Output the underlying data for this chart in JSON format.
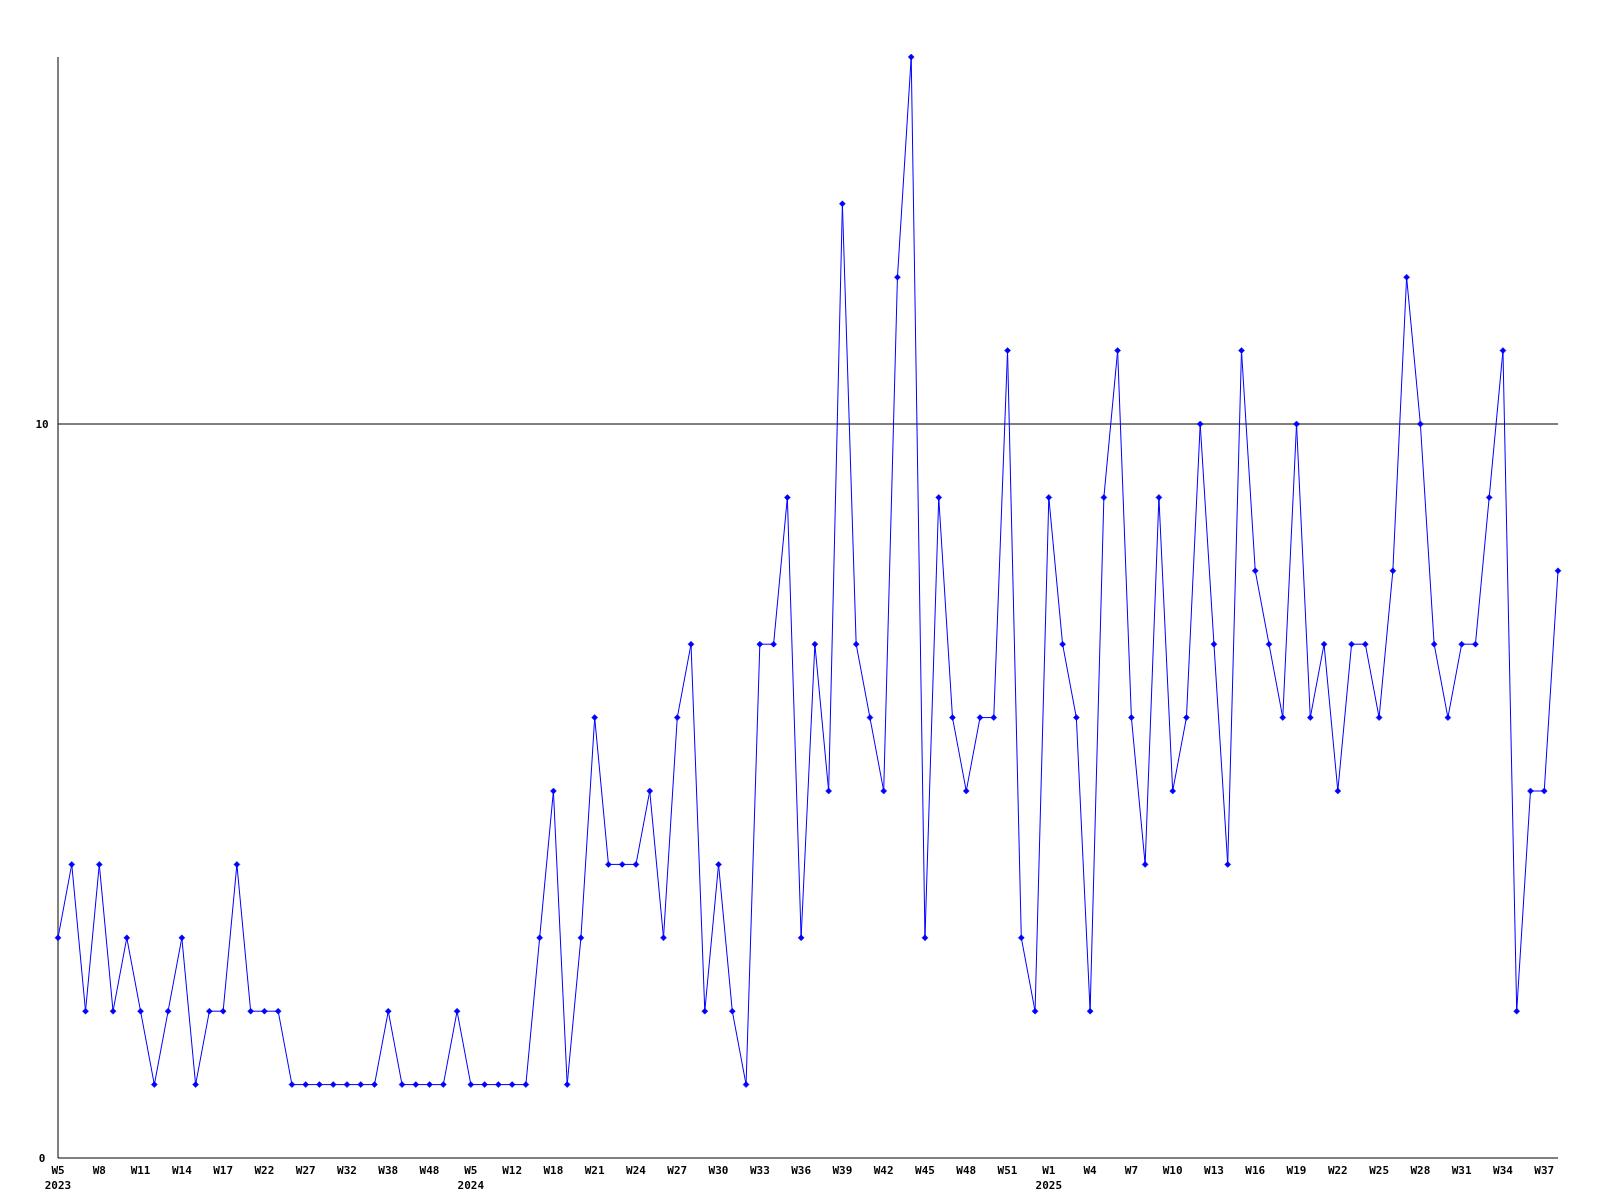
{
  "chart_data": {
    "type": "line",
    "categories": [
      "W5\n2023",
      null,
      null,
      "W8",
      null,
      null,
      "W11",
      null,
      null,
      "W14",
      null,
      null,
      "W17",
      null,
      null,
      "W22",
      null,
      null,
      "W27",
      null,
      null,
      "W32",
      null,
      null,
      "W38",
      null,
      null,
      "W48",
      null,
      null,
      "W5\n2024",
      null,
      null,
      "W12",
      null,
      null,
      "W18",
      null,
      null,
      "W21",
      null,
      null,
      "W24",
      null,
      null,
      "W27",
      null,
      null,
      "W30",
      null,
      null,
      "W33",
      null,
      null,
      "W36",
      null,
      null,
      "W39",
      null,
      null,
      "W42",
      null,
      null,
      "W45",
      null,
      null,
      "W48",
      null,
      null,
      "W51",
      null,
      null,
      "W1\n2025",
      null,
      null,
      "W4",
      null,
      null,
      "W7",
      null,
      null,
      "W10",
      null,
      null,
      "W13",
      null,
      null,
      "W16",
      null,
      null,
      "W19",
      null,
      null,
      "W22",
      null,
      null,
      "W25",
      null,
      null,
      "W28",
      null,
      null,
      "W31",
      null,
      null,
      "W34",
      null,
      null,
      "W37",
      null
    ],
    "series": [
      {
        "color": "#0000ff",
        "values": [
          3,
          4,
          2,
          4,
          2,
          3,
          2,
          1,
          2,
          3,
          1,
          2,
          2,
          4,
          2,
          2,
          2,
          1,
          1,
          1,
          1,
          1,
          1,
          1,
          2,
          1,
          1,
          1,
          1,
          2,
          1,
          1,
          1,
          1,
          1,
          3,
          5,
          1,
          3,
          6,
          4,
          4,
          4,
          5,
          3,
          6,
          7,
          2,
          4,
          2,
          1,
          7,
          7,
          9,
          3,
          7,
          5,
          13,
          7,
          6,
          5,
          12,
          15,
          3,
          9,
          6,
          5,
          6,
          6,
          11,
          3,
          2,
          9,
          7,
          6,
          2,
          9,
          11,
          6,
          4,
          9,
          5,
          6,
          10,
          7,
          4,
          11,
          8,
          7,
          6,
          10,
          6,
          7,
          5,
          7,
          7,
          6,
          8,
          12,
          10,
          7,
          6,
          7,
          7,
          9,
          11,
          2,
          5,
          5,
          8
        ]
      }
    ],
    "ylim": [
      0,
      15
    ],
    "yticks": [
      0,
      10
    ],
    "grid": "y",
    "marker": "diamond",
    "line_style": "solid"
  }
}
